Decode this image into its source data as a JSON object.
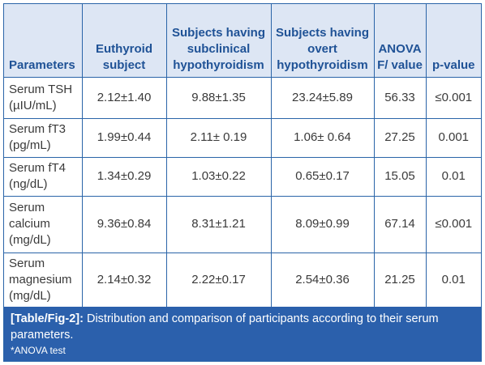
{
  "table": {
    "headers": [
      "Parameters",
      "Euthyroid subject",
      "Subjects having subclinical hypothyroidism",
      "Subjects having overt hypothyroidism",
      "ANOVA F/ value",
      "p-value"
    ],
    "rows": [
      [
        "Serum TSH (µIU/mL)",
        "2.12±1.40",
        "9.88±1.35",
        "23.24±5.89",
        "56.33",
        "≤0.001"
      ],
      [
        "Serum fT3 (pg/mL)",
        "1.99±0.44",
        "2.11± 0.19",
        "1.06± 0.64",
        "27.25",
        "0.001"
      ],
      [
        "Serum fT4 (ng/dL)",
        "1.34±0.29",
        "1.03±0.22",
        "0.65±0.17",
        "15.05",
        "0.01"
      ],
      [
        "Serum calcium (mg/dL)",
        "9.36±0.84",
        "8.31±1.21",
        "8.09±0.99",
        "67.14",
        "≤0.001"
      ],
      [
        "Serum magnesium (mg/dL)",
        "2.14±0.32",
        "2.22±0.17",
        "2.54±0.36",
        "21.25",
        "0.01"
      ]
    ]
  },
  "caption": {
    "label": "[Table/Fig-2]:",
    "text": "Distribution and comparison of participants according to their serum parameters.",
    "note": "*ANOVA test"
  },
  "colors": {
    "accent": "#2b60ac",
    "header_bg": "#dde6f4",
    "header_text": "#1f5296",
    "border": "#2a64a8"
  }
}
